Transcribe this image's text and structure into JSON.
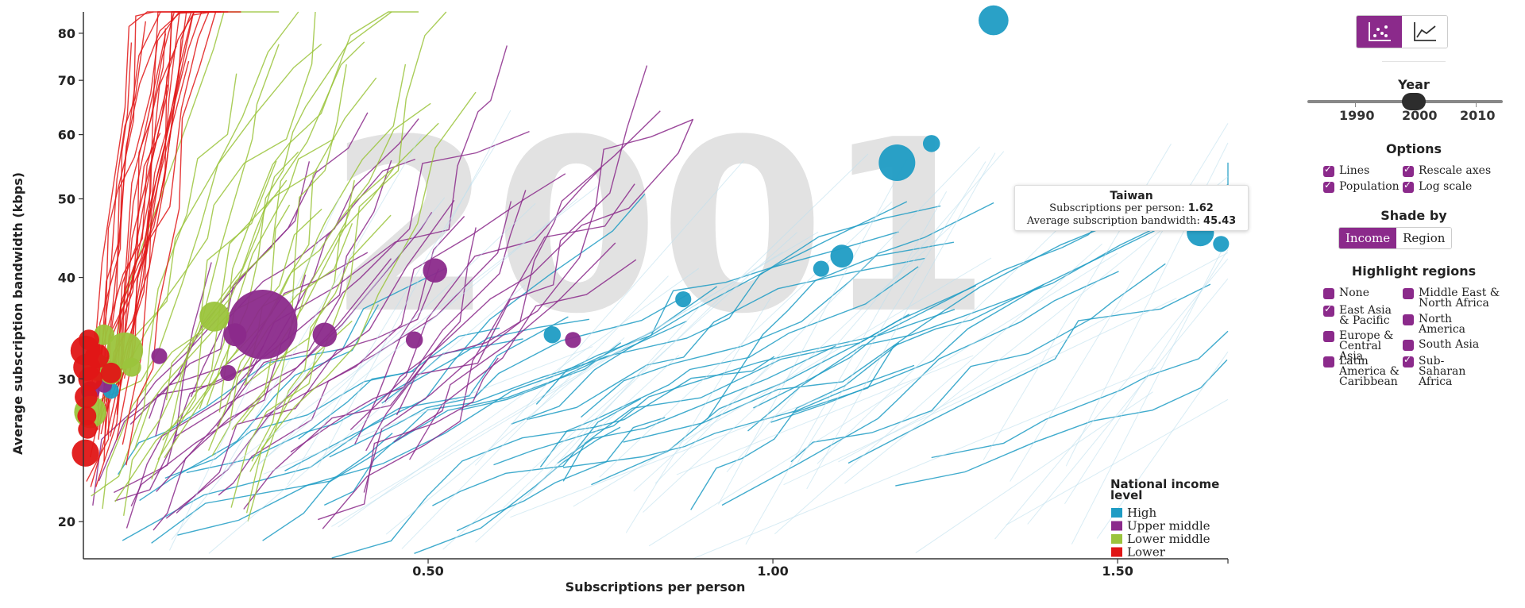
{
  "colors": {
    "high": "#1f9cc4",
    "upper_middle": "#8b2a8b",
    "lower_middle": "#9bc43c",
    "lower": "#e01616",
    "accent": "#8b2a8b"
  },
  "watermark_year": "2001",
  "tooltip": {
    "title": "Taiwan",
    "row1_label": "Subscriptions per person:",
    "row1_value": "1.62",
    "row2_label": "Average subscription bandwidth:",
    "row2_value": "45.43"
  },
  "controls": {
    "chart_modes": [
      {
        "icon": "scatter-chart-icon",
        "active": true
      },
      {
        "icon": "line-chart-icon",
        "active": false
      }
    ],
    "year_title": "Year",
    "year_ticks": [
      "1990",
      "2000",
      "2010"
    ],
    "year_value": 2001,
    "options_title": "Options",
    "options": [
      {
        "label": "Lines",
        "checked": true
      },
      {
        "label": "Rescale axes",
        "checked": false
      },
      {
        "label": "Population",
        "checked": true
      },
      {
        "label": "Log scale",
        "checked": true
      }
    ],
    "shade_title": "Shade by",
    "shade_options": [
      {
        "label": "Income",
        "active": true
      },
      {
        "label": "Region",
        "active": false
      }
    ],
    "highlight_title": "Highlight regions",
    "regions": [
      {
        "label": "None",
        "checked": false
      },
      {
        "label": "Middle East & North Africa",
        "checked": false
      },
      {
        "label": "East Asia & Pacific",
        "checked": true
      },
      {
        "label": "North America",
        "checked": false
      },
      {
        "label": "Europe & Central Asia",
        "checked": false
      },
      {
        "label": "South Asia",
        "checked": false
      },
      {
        "label": "Latin America & Caribbean",
        "checked": false
      },
      {
        "label": "Sub-Saharan Africa",
        "checked": true
      }
    ]
  },
  "chart_data": {
    "type": "scatter",
    "xlabel": "Subscriptions per person",
    "ylabel": "Average subscription bandwidth (kbps)",
    "xlim": [
      0,
      1.66
    ],
    "ylim": [
      18,
      85
    ],
    "y_scale": "log",
    "x_ticks": [
      "0.50",
      "1.00",
      "1.50"
    ],
    "x_tick_values": [
      0.5,
      1.0,
      1.5
    ],
    "y_ticks": [
      "20",
      "30",
      "40",
      "50",
      "60",
      "70",
      "80"
    ],
    "y_tick_values": [
      20,
      30,
      40,
      50,
      60,
      70,
      80
    ],
    "legend": {
      "title": "National income level",
      "placement": "bottom-right",
      "entries": [
        {
          "label": "High",
          "key": "high"
        },
        {
          "label": "Upper middle",
          "key": "upper_middle"
        },
        {
          "label": "Lower middle",
          "key": "lower_middle"
        },
        {
          "label": "Lower",
          "key": "lower"
        }
      ]
    },
    "series": [
      {
        "group": "high",
        "points": [
          {
            "x": 1.62,
            "y": 45.43,
            "pop": 2
          },
          {
            "x": 1.18,
            "y": 55.4,
            "pop": 4
          },
          {
            "x": 1.32,
            "y": 83.0,
            "pop": 2.5
          },
          {
            "x": 1.1,
            "y": 42.5,
            "pop": 1.3
          },
          {
            "x": 1.23,
            "y": 58.5,
            "pop": 0.6
          },
          {
            "x": 0.87,
            "y": 37.6,
            "pop": 0.5
          },
          {
            "x": 1.65,
            "y": 44.0,
            "pop": 0.5
          },
          {
            "x": 1.07,
            "y": 41.0,
            "pop": 0.5
          },
          {
            "x": 0.68,
            "y": 34.0,
            "pop": 0.6
          },
          {
            "x": 0.04,
            "y": 29.0,
            "pop": 0.5
          }
        ]
      },
      {
        "group": "upper_middle",
        "points": [
          {
            "x": 0.26,
            "y": 35.0,
            "pop": 11
          },
          {
            "x": 0.51,
            "y": 40.8,
            "pop": 1.5
          },
          {
            "x": 0.35,
            "y": 34.0,
            "pop": 1.5
          },
          {
            "x": 0.22,
            "y": 34.0,
            "pop": 1.3
          },
          {
            "x": 0.48,
            "y": 33.5,
            "pop": 0.6
          },
          {
            "x": 0.71,
            "y": 33.5,
            "pop": 0.5
          },
          {
            "x": 0.11,
            "y": 32.0,
            "pop": 0.5
          },
          {
            "x": 0.21,
            "y": 30.5,
            "pop": 0.5
          },
          {
            "x": 0.01,
            "y": 29.0,
            "pop": 0.8
          },
          {
            "x": 0.03,
            "y": 29.5,
            "pop": 0.5
          }
        ]
      },
      {
        "group": "lower_middle",
        "points": [
          {
            "x": 0.06,
            "y": 32.5,
            "pop": 4
          },
          {
            "x": 0.01,
            "y": 27.3,
            "pop": 3
          },
          {
            "x": 0.19,
            "y": 35.8,
            "pop": 2.5
          },
          {
            "x": 0.02,
            "y": 31.0,
            "pop": 2
          },
          {
            "x": 0.04,
            "y": 30.5,
            "pop": 1.3
          },
          {
            "x": 0.03,
            "y": 34.0,
            "pop": 1.0
          },
          {
            "x": 0.07,
            "y": 31.0,
            "pop": 0.8
          }
        ]
      },
      {
        "group": "lower",
        "points": [
          {
            "x": 0.003,
            "y": 32.5,
            "pop": 2.5
          },
          {
            "x": 0.003,
            "y": 24.3,
            "pop": 2
          },
          {
            "x": 0.005,
            "y": 31.0,
            "pop": 2
          },
          {
            "x": 0.01,
            "y": 30.0,
            "pop": 1.5
          },
          {
            "x": 0.02,
            "y": 32.0,
            "pop": 1.5
          },
          {
            "x": 0.004,
            "y": 28.5,
            "pop": 1.3
          },
          {
            "x": 0.008,
            "y": 33.5,
            "pop": 1.0
          },
          {
            "x": 0.04,
            "y": 30.5,
            "pop": 1.0
          },
          {
            "x": 0.005,
            "y": 27.0,
            "pop": 0.8
          },
          {
            "x": 0.006,
            "y": 26.0,
            "pop": 0.8
          }
        ]
      }
    ]
  }
}
